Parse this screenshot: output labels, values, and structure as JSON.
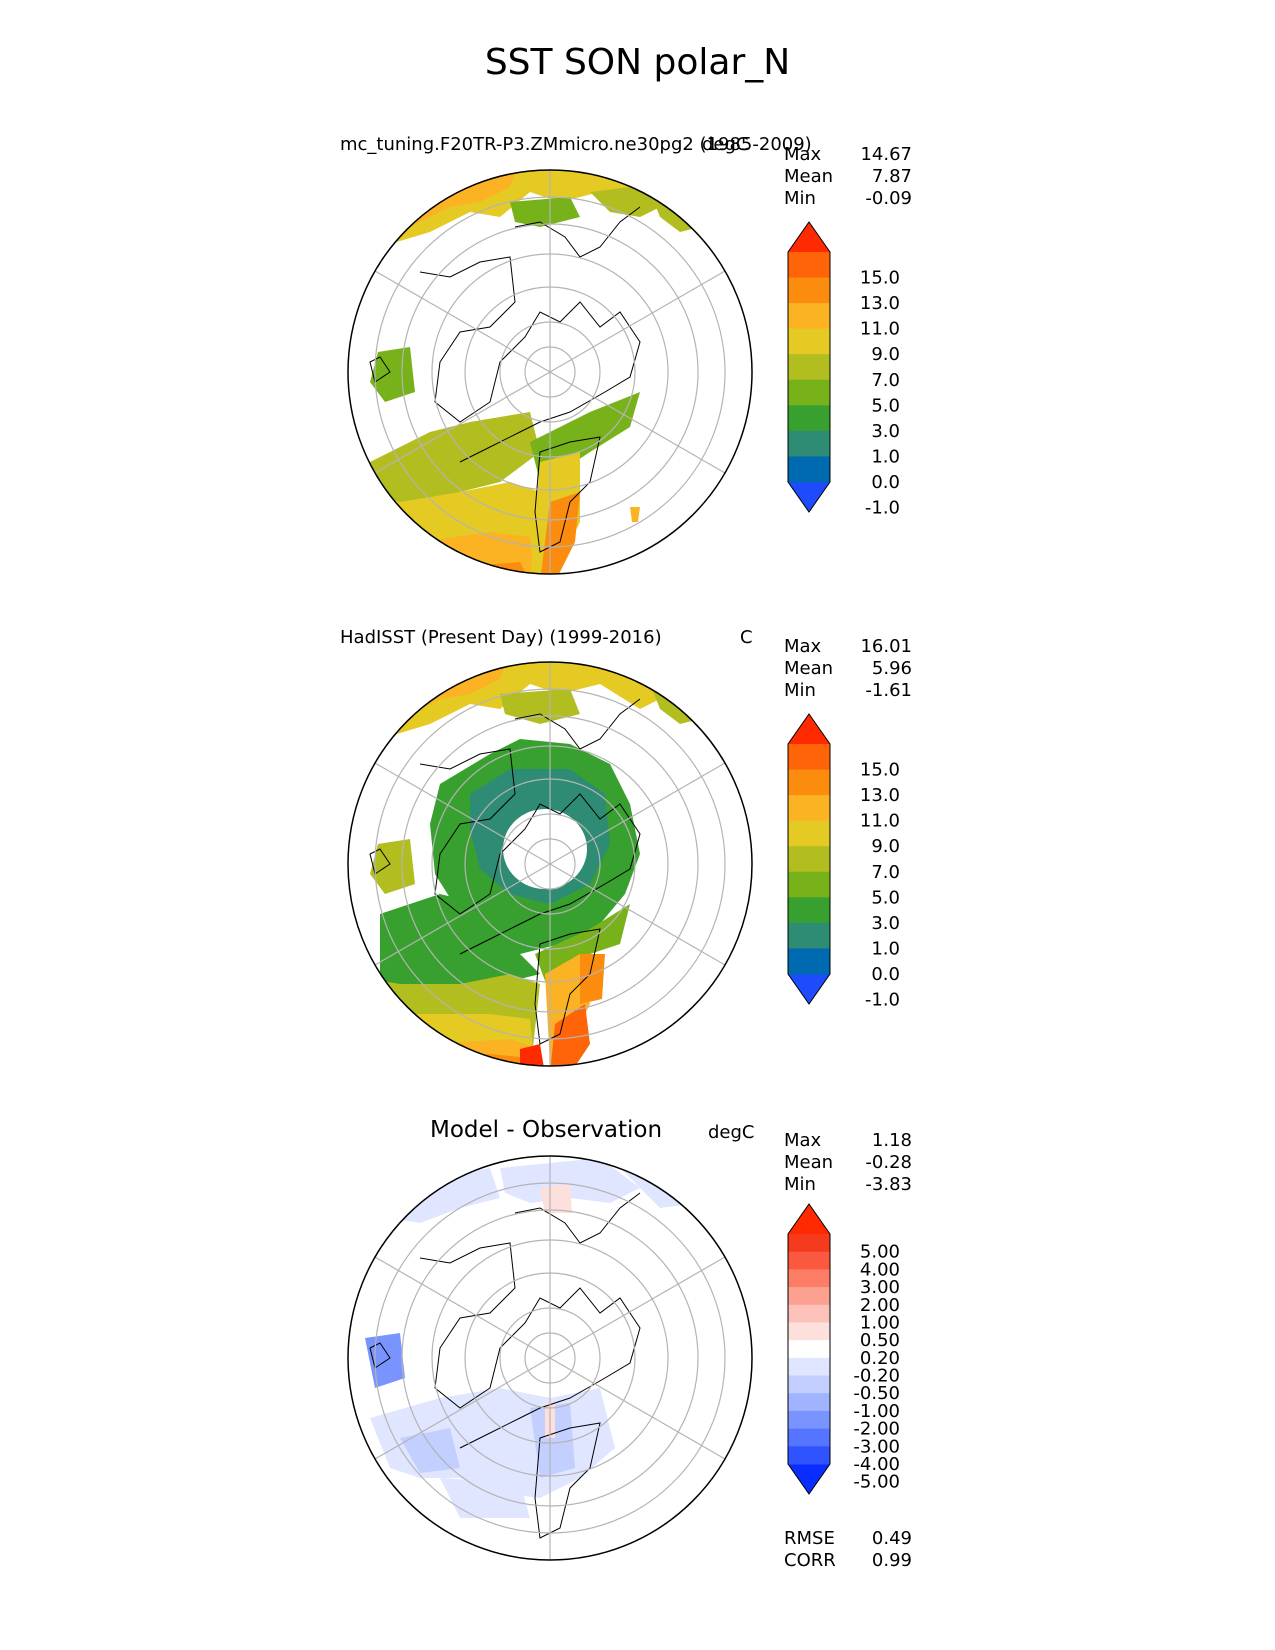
{
  "figure_title": "SST SON polar_N",
  "panels": [
    {
      "title": "mc_tuning.F20TR-P3.ZMmicro.ne30pg2 (1985-2009)",
      "units": "degC",
      "stats": [
        {
          "label": "Max",
          "value": "14.67"
        },
        {
          "label": "Mean",
          "value": "7.87"
        },
        {
          "label": "Min",
          "value": "-0.09"
        }
      ],
      "colorbar": {
        "ticks": [
          "15.0",
          "13.0",
          "11.0",
          "9.0",
          "7.0",
          "5.0",
          "3.0",
          "1.0",
          "0.0",
          "-1.0"
        ],
        "colors": [
          "#1f4bff",
          "#006ab0",
          "#2e8b74",
          "#38a02e",
          "#78b21a",
          "#b2be20",
          "#e5ca24",
          "#fbb323",
          "#fb8c0d",
          "#ff6408",
          "#ff2a00"
        ]
      }
    },
    {
      "title": "HadISST (Present Day) (1999-2016)",
      "units": "C",
      "stats": [
        {
          "label": "Max",
          "value": "16.01"
        },
        {
          "label": "Mean",
          "value": "5.96"
        },
        {
          "label": "Min",
          "value": "-1.61"
        }
      ],
      "colorbar": {
        "ticks": [
          "15.0",
          "13.0",
          "11.0",
          "9.0",
          "7.0",
          "5.0",
          "3.0",
          "1.0",
          "0.0",
          "-1.0"
        ],
        "colors": [
          "#1f4bff",
          "#006ab0",
          "#2e8b74",
          "#38a02e",
          "#78b21a",
          "#b2be20",
          "#e5ca24",
          "#fbb323",
          "#fb8c0d",
          "#ff6408",
          "#ff2a00"
        ]
      }
    },
    {
      "title": "Model - Observation",
      "units": "degC",
      "stats": [
        {
          "label": "Max",
          "value": "1.18"
        },
        {
          "label": "Mean",
          "value": "-0.28"
        },
        {
          "label": "Min",
          "value": "-3.83"
        }
      ],
      "metrics": [
        {
          "label": "RMSE",
          "value": "0.49"
        },
        {
          "label": "CORR",
          "value": "0.99"
        }
      ],
      "colorbar": {
        "ticks": [
          "5.00",
          "4.00",
          "3.00",
          "2.00",
          "1.00",
          "0.50",
          "0.20",
          "-0.20",
          "-0.50",
          "-1.00",
          "-2.00",
          "-3.00",
          "-4.00",
          "-5.00"
        ],
        "colors": [
          "#0a2dff",
          "#2f54ff",
          "#5574ff",
          "#7a94ff",
          "#a0b3ff",
          "#c2cfff",
          "#e0e6ff",
          "#ffffff",
          "#fde0dc",
          "#fcc1b8",
          "#fca090",
          "#fb7d66",
          "#fa593f",
          "#f53a1e",
          "#ff2a00"
        ]
      }
    }
  ]
}
